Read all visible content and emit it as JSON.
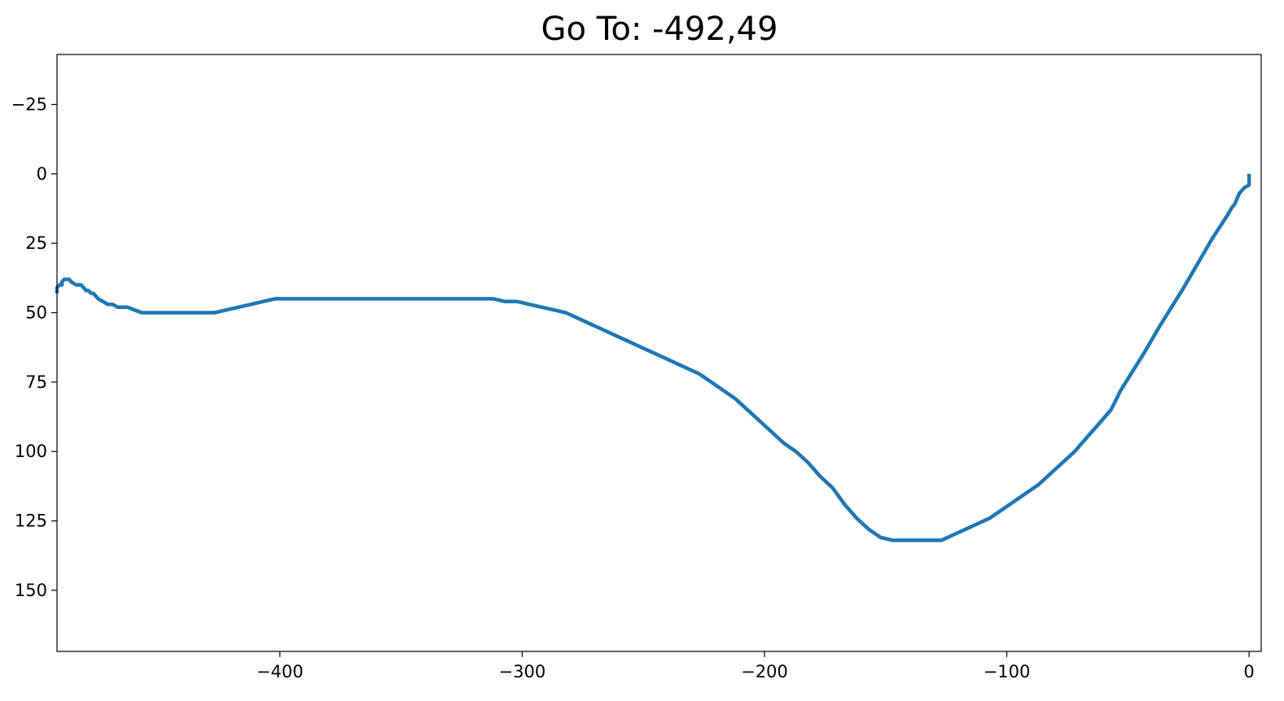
{
  "chart_data": {
    "type": "line",
    "title": "Go To:  -492,49",
    "xlabel": "",
    "ylabel": "",
    "xlim": [
      -492,
      5
    ],
    "ylim": [
      -43,
      172
    ],
    "y_inverted": true,
    "grid": false,
    "x_ticks": [
      {
        "value": -400,
        "label": "−400"
      },
      {
        "value": -300,
        "label": "−300"
      },
      {
        "value": -200,
        "label": "−200"
      },
      {
        "value": -100,
        "label": "−100"
      },
      {
        "value": 0,
        "label": "0"
      }
    ],
    "y_ticks": [
      {
        "value": -25,
        "label": "−25"
      },
      {
        "value": 0,
        "label": "0"
      },
      {
        "value": 25,
        "label": "25"
      },
      {
        "value": 50,
        "label": "50"
      },
      {
        "value": 75,
        "label": "75"
      },
      {
        "value": 100,
        "label": "100"
      },
      {
        "value": 125,
        "label": "125"
      },
      {
        "value": 150,
        "label": "150"
      }
    ],
    "series": [
      {
        "color": "#1f77b4",
        "x": [
          0,
          0,
          -2,
          -3,
          -4,
          -6,
          -7,
          -9,
          -12,
          -15,
          -19,
          -23,
          -27,
          -32,
          -37,
          -43,
          -48,
          -53,
          -57,
          -62,
          -67,
          -72,
          -77,
          -82,
          -87,
          -92,
          -97,
          -102,
          -107,
          -112,
          -117,
          -122,
          -127,
          -132,
          -137,
          -142,
          -147,
          -152,
          -157,
          -162,
          -167,
          -172,
          -177,
          -182,
          -187,
          -192,
          -197,
          -202,
          -207,
          -212,
          -217,
          -222,
          -227,
          -232,
          -237,
          -242,
          -247,
          -252,
          -257,
          -262,
          -267,
          -272,
          -277,
          -282,
          -287,
          -292,
          -297,
          -302,
          -307,
          -312,
          -317,
          -322,
          -327,
          -332,
          -337,
          -342,
          -347,
          -352,
          -357,
          -362,
          -367,
          -372,
          -377,
          -382,
          -387,
          -392,
          -397,
          -402,
          -407,
          -412,
          -417,
          -422,
          -427,
          -432,
          -437,
          -442,
          -447,
          -452,
          -455,
          -457,
          -460,
          -463,
          -465,
          -467,
          -469,
          -471,
          -473,
          -475,
          -476,
          -477,
          -478,
          -479,
          -480,
          -481,
          -482,
          -484,
          -486,
          -487,
          -488,
          -489,
          -490,
          -490,
          -491,
          -492,
          -492,
          -492
        ],
        "y": [
          0,
          4,
          5,
          6,
          7,
          11,
          12,
          15,
          19,
          23,
          29,
          35,
          41,
          48,
          55,
          64,
          71,
          78,
          85,
          90,
          95,
          100,
          104,
          108,
          112,
          115,
          118,
          121,
          124,
          126,
          128,
          130,
          132,
          132,
          132,
          132,
          132,
          131,
          128,
          124,
          119,
          113,
          109,
          104,
          100,
          97,
          93,
          89,
          85,
          81,
          78,
          75,
          72,
          70,
          68,
          66,
          64,
          62,
          60,
          58,
          56,
          54,
          52,
          50,
          49,
          48,
          47,
          46,
          46,
          45,
          45,
          45,
          45,
          45,
          45,
          45,
          45,
          45,
          45,
          45,
          45,
          45,
          45,
          45,
          45,
          45,
          45,
          45,
          46,
          47,
          48,
          49,
          50,
          50,
          50,
          50,
          50,
          50,
          50,
          50,
          49,
          48,
          48,
          48,
          47,
          47,
          46,
          45,
          44,
          43,
          43,
          42,
          42,
          41,
          40,
          40,
          39,
          38,
          38,
          38,
          39,
          40,
          40,
          41,
          42,
          43
        ]
      }
    ]
  }
}
